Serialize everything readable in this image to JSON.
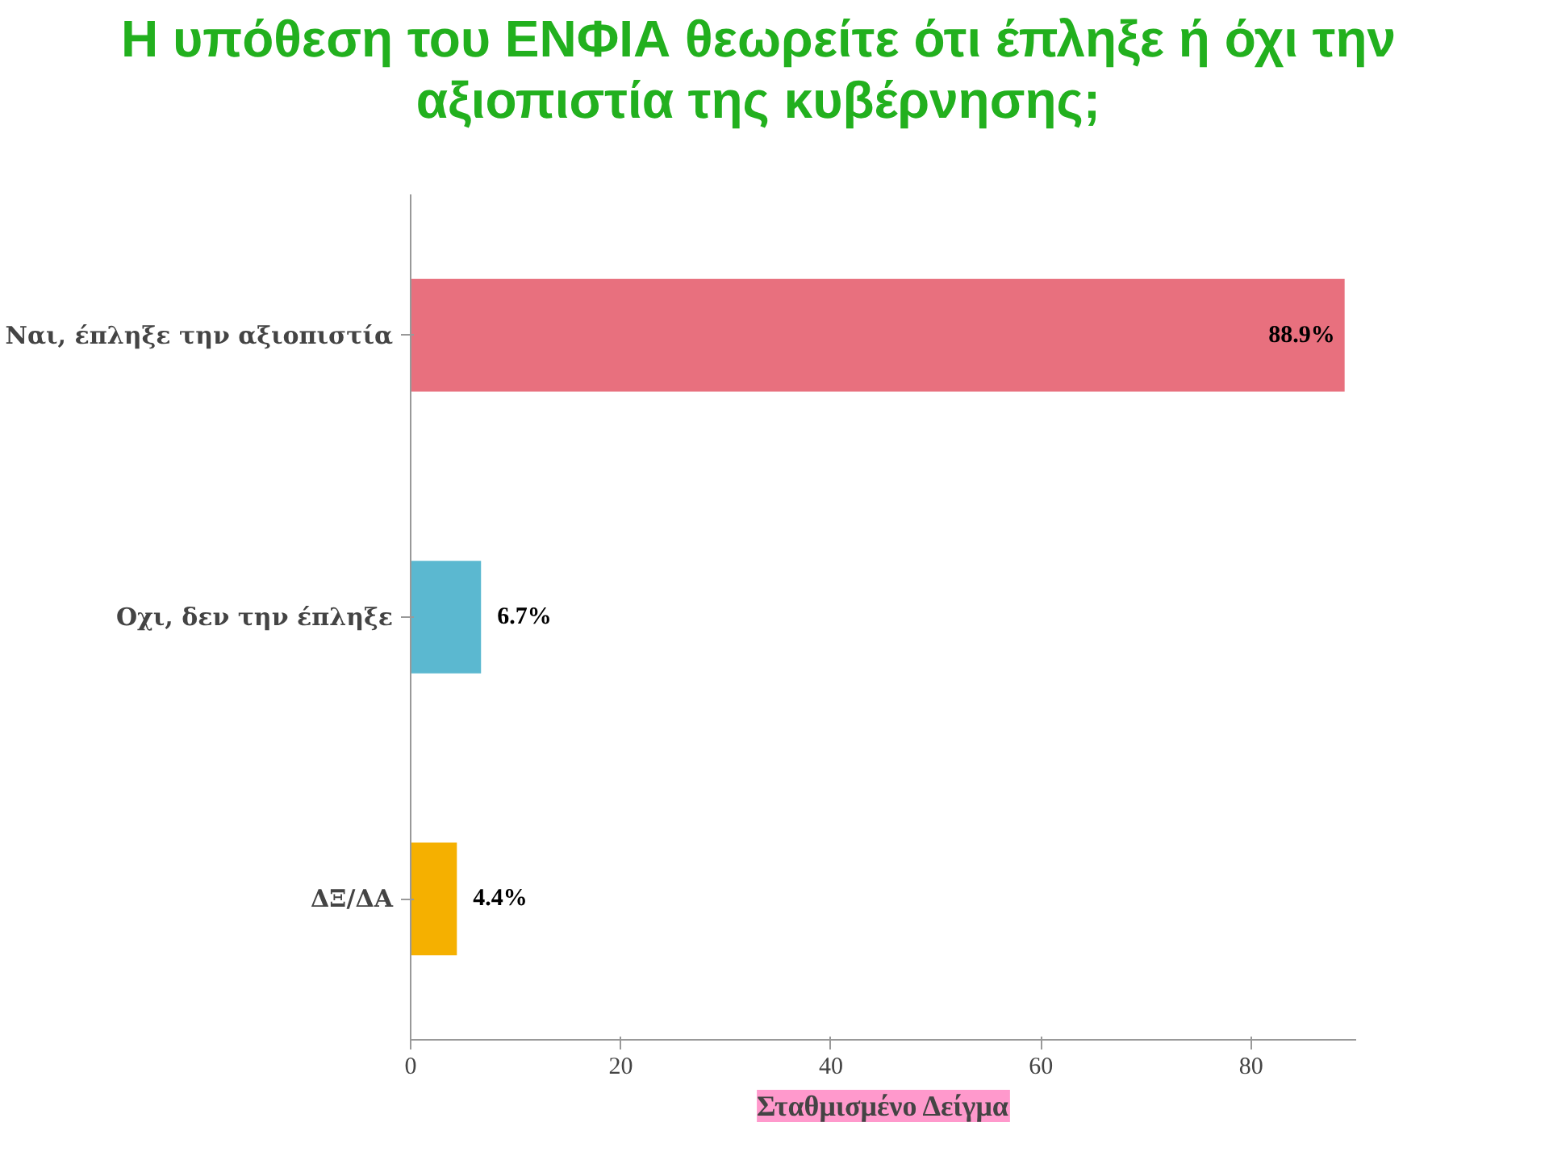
{
  "chart_data": {
    "type": "bar",
    "orientation": "horizontal",
    "title": "Η υπόθεση του ΕΝΦΙΑ θεωρείτε ότι έπληξε ή όχι την αξιοπιστία της κυβέρνησης;",
    "categories": [
      "Ναι, έπληξε την αξιοπιστία",
      "Οχι, δεν την έπληξε",
      "ΔΞ/ΔΑ"
    ],
    "values": [
      88.9,
      6.7,
      4.4
    ],
    "colors": [
      "#e8707e",
      "#5bb8d0",
      "#f5b000"
    ],
    "value_labels": [
      "88.9%",
      "6.7%",
      "4.4%"
    ],
    "xlim": [
      0,
      90
    ],
    "xticks": [
      0,
      20,
      40,
      60,
      80
    ],
    "annotations": [
      "Σταθμισμένο Δείγμα"
    ]
  }
}
